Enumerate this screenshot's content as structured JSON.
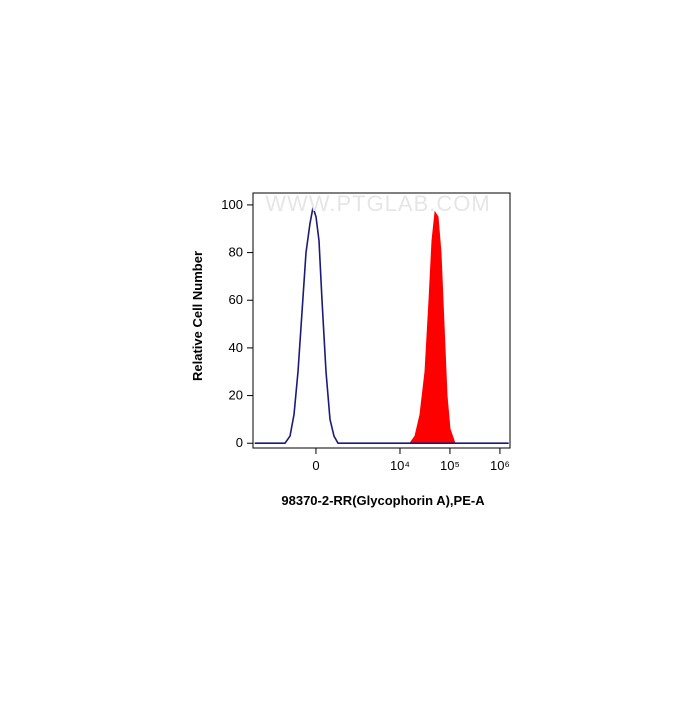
{
  "chart_data": {
    "type": "line",
    "watermark": "WWW.PTGLAB.COM",
    "xlabel": "98370-2-RR(Glycophorin A),PE-A",
    "ylabel": "Relative Cell Number",
    "xscale": "arcsinh",
    "xlim": [
      -3780,
      1590000
    ],
    "xticks": [
      0,
      {
        "value": 10000,
        "label": "10⁴"
      },
      {
        "value": 100000,
        "label": "10⁵"
      },
      {
        "value": 1000000,
        "label": "10⁶"
      }
    ],
    "ylim": [
      -2,
      105
    ],
    "yticks": [
      0,
      20,
      40,
      60,
      80,
      100
    ],
    "series": [
      {
        "color": "#ff0000",
        "fill": true,
        "x": [
          15870,
          19970,
          25150,
          31650,
          38060,
          43750,
          50200,
          57660,
          66180,
          76060,
          87320,
          100250,
          126270
        ],
        "values": [
          0,
          3,
          12,
          30,
          60,
          85,
          97,
          95,
          80,
          50,
          20,
          6,
          0
        ]
      },
      {
        "color": "#1a1a7a",
        "fill": false,
        "x": [
          -3500,
          -817,
          -628,
          -499,
          -387,
          -288,
          -199,
          -117,
          -58,
          0,
          58,
          117,
          199,
          288,
          387,
          499,
          1500000
        ],
        "values": [
          0,
          0,
          3,
          12,
          30,
          55,
          80,
          92,
          99,
          95,
          85,
          60,
          30,
          10,
          3,
          0,
          0
        ]
      }
    ]
  }
}
